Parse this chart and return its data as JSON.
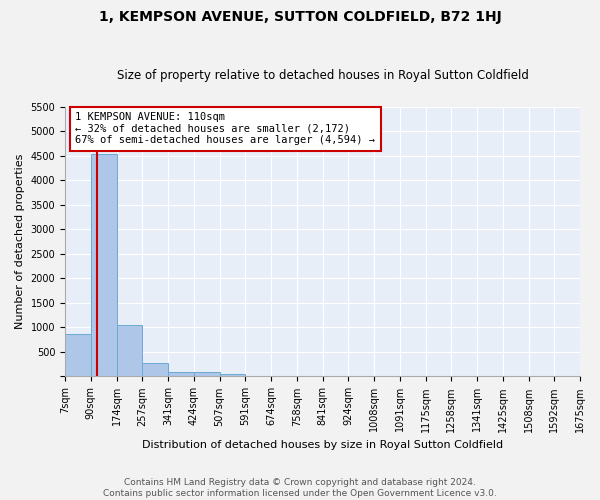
{
  "title": "1, KEMPSON AVENUE, SUTTON COLDFIELD, B72 1HJ",
  "subtitle": "Size of property relative to detached houses in Royal Sutton Coldfield",
  "xlabel": "Distribution of detached houses by size in Royal Sutton Coldfield",
  "ylabel": "Number of detached properties",
  "bar_values": [
    870,
    4540,
    1050,
    280,
    90,
    90,
    50,
    0,
    0,
    0,
    0,
    0,
    0,
    0,
    0,
    0,
    0,
    0,
    0,
    0
  ],
  "bar_color": "#aec6e8",
  "bar_edge_color": "#6aaad4",
  "categories": [
    "7sqm",
    "90sqm",
    "174sqm",
    "257sqm",
    "341sqm",
    "424sqm",
    "507sqm",
    "591sqm",
    "674sqm",
    "758sqm",
    "841sqm",
    "924sqm",
    "1008sqm",
    "1091sqm",
    "1175sqm",
    "1258sqm",
    "1341sqm",
    "1425sqm",
    "1508sqm",
    "1592sqm",
    "1675sqm"
  ],
  "ylim": [
    0,
    5500
  ],
  "yticks": [
    0,
    500,
    1000,
    1500,
    2000,
    2500,
    3000,
    3500,
    4000,
    4500,
    5000,
    5500
  ],
  "annotation_line1": "1 KEMPSON AVENUE: 110sqm",
  "annotation_line2": "← 32% of detached houses are smaller (2,172)",
  "annotation_line3": "67% of semi-detached houses are larger (4,594) →",
  "annotation_box_color": "#ffffff",
  "annotation_border_color": "#cc0000",
  "footer_line1": "Contains HM Land Registry data © Crown copyright and database right 2024.",
  "footer_line2": "Contains public sector information licensed under the Open Government Licence v3.0.",
  "background_color": "#e8eef8",
  "grid_color": "#ffffff",
  "fig_bg_color": "#f2f2f2",
  "title_fontsize": 10,
  "subtitle_fontsize": 8.5,
  "xlabel_fontsize": 8,
  "ylabel_fontsize": 8,
  "tick_fontsize": 7,
  "annotation_fontsize": 7.5,
  "footer_fontsize": 6.5
}
